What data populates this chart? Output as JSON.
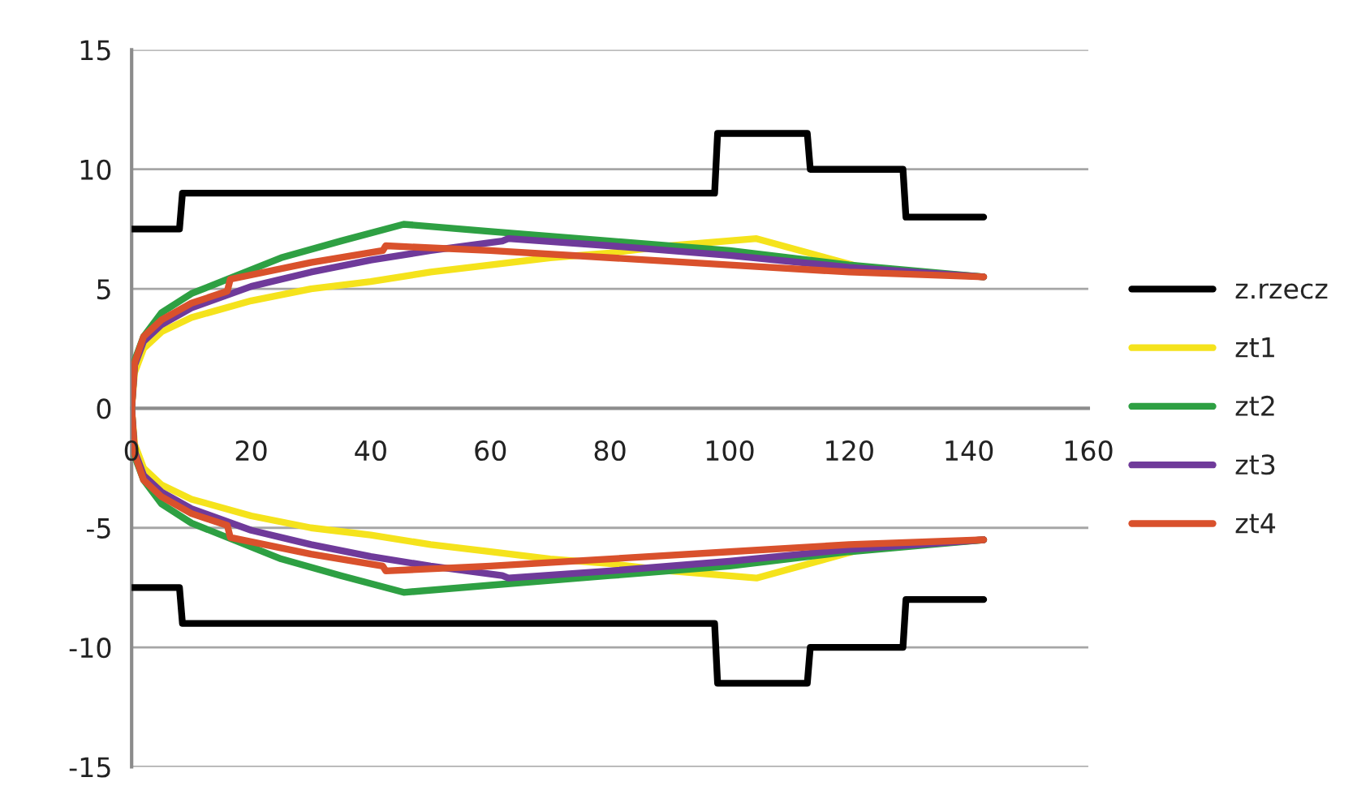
{
  "chart_data": {
    "type": "line",
    "xlim": [
      0,
      160
    ],
    "xticks": [
      0,
      20,
      40,
      60,
      80,
      100,
      120,
      140,
      160
    ],
    "ylim": [
      -15,
      15
    ],
    "yticks": [
      -15,
      -10,
      -5,
      0,
      5,
      10,
      15
    ],
    "grid": "y",
    "legend": "right",
    "marker": "none",
    "line_style": "solid",
    "series": [
      {
        "name": "z.rzecz",
        "color": "#000000",
        "x": [
          0,
          8,
          8.5,
          97.5,
          98,
          113,
          113.5,
          129,
          129.5,
          142.5,
          null,
          0,
          8,
          8.5,
          97.5,
          98,
          113,
          113.5,
          129,
          129.5,
          142.5
        ],
        "values": [
          7.5,
          7.5,
          9,
          9,
          11.5,
          11.5,
          10,
          10,
          8,
          8,
          null,
          -7.5,
          -7.5,
          -9,
          -9,
          -11.5,
          -11.5,
          -10,
          -10,
          -8,
          -8
        ]
      },
      {
        "name": "zt1",
        "color": "#f5e31c",
        "x": [
          0,
          0.5,
          2,
          5,
          10,
          20,
          30,
          40,
          50,
          60,
          70,
          80,
          90,
          104.5,
          122,
          142.5,
          null,
          0,
          0.5,
          2,
          5,
          10,
          20,
          30,
          40,
          50,
          60,
          70,
          80,
          90,
          104.5,
          122,
          142.5
        ],
        "values": [
          0,
          1.5,
          2.5,
          3.2,
          3.8,
          4.5,
          5,
          5.3,
          5.7,
          6.0,
          6.3,
          6.5,
          6.8,
          7.1,
          5.9,
          5.5,
          null,
          0,
          -1.5,
          -2.5,
          -3.2,
          -3.8,
          -4.5,
          -5,
          -5.3,
          -5.7,
          -6.0,
          -6.3,
          -6.5,
          -6.8,
          -7.1,
          -5.9,
          -5.5
        ]
      },
      {
        "name": "zt2",
        "color": "#2ea043",
        "x": [
          0,
          0.5,
          2,
          5,
          10,
          17,
          25,
          35,
          45.5,
          60,
          80,
          100,
          120,
          142.5,
          null,
          0,
          0.5,
          2,
          5,
          10,
          17,
          25,
          35,
          45.5,
          60,
          80,
          100,
          120,
          142.5
        ],
        "values": [
          0,
          2,
          3,
          4,
          4.8,
          5.5,
          6.3,
          7.0,
          7.7,
          7.4,
          7.0,
          6.6,
          6.0,
          5.5,
          null,
          0,
          -2,
          -3,
          -4,
          -4.8,
          -5.5,
          -6.3,
          -7.0,
          -7.7,
          -7.4,
          -7.0,
          -6.6,
          -6.0,
          -5.5
        ]
      },
      {
        "name": "zt3",
        "color": "#6f3a9a",
        "x": [
          0,
          0.5,
          2,
          5,
          10,
          20,
          30,
          40,
          50,
          62,
          63,
          80,
          100,
          120,
          142.5,
          null,
          0,
          0.5,
          2,
          5,
          10,
          20,
          30,
          40,
          50,
          62,
          63,
          80,
          100,
          120,
          142.5
        ],
        "values": [
          0,
          1.8,
          2.8,
          3.5,
          4.2,
          5.1,
          5.7,
          6.2,
          6.6,
          7.0,
          7.1,
          6.8,
          6.4,
          5.9,
          5.5,
          null,
          0,
          -1.8,
          -2.8,
          -3.5,
          -4.2,
          -5.1,
          -5.7,
          -6.2,
          -6.6,
          -7.0,
          -7.1,
          -6.8,
          -6.4,
          -5.9,
          -5.5
        ]
      },
      {
        "name": "zt4",
        "color": "#d9512c",
        "x": [
          0,
          0.5,
          2,
          5,
          10,
          16,
          16.5,
          30,
          42,
          42.5,
          60,
          80,
          100,
          120,
          142.5,
          null,
          0,
          0.5,
          2,
          5,
          10,
          16,
          16.5,
          30,
          42,
          42.5,
          60,
          80,
          100,
          120,
          142.5
        ],
        "values": [
          0,
          1.9,
          3,
          3.7,
          4.4,
          4.9,
          5.4,
          6.1,
          6.6,
          6.8,
          6.6,
          6.3,
          6.0,
          5.7,
          5.5,
          null,
          0,
          -1.9,
          -3,
          -3.7,
          -4.4,
          -4.9,
          -5.4,
          -6.1,
          -6.6,
          -6.8,
          -6.6,
          -6.3,
          -6.0,
          -5.7,
          -5.5
        ]
      }
    ]
  }
}
